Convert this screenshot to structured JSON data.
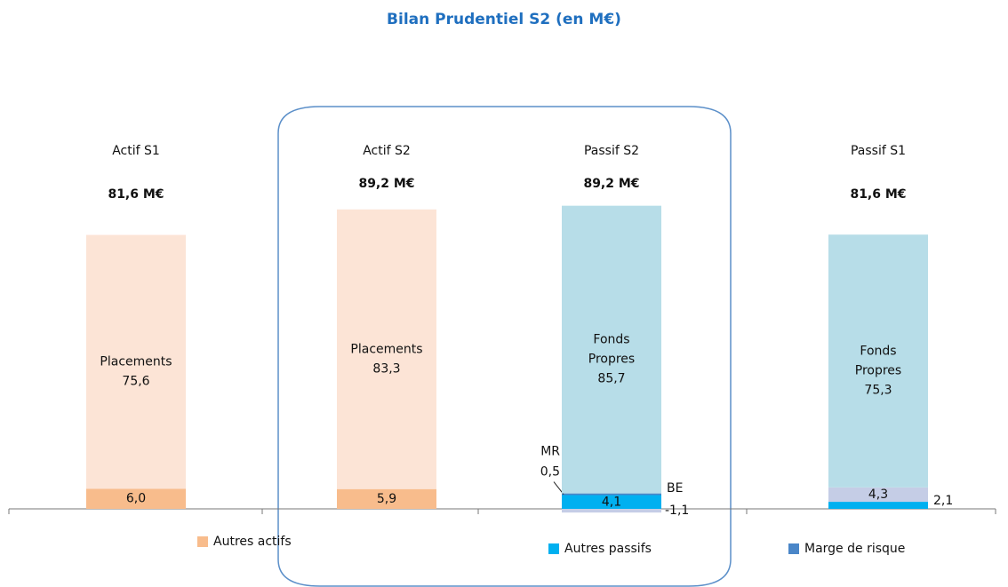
{
  "chart_data": {
    "type": "stacked-bar",
    "title": "Bilan Prudentiel S2 (en M€)",
    "categories": [
      "Actif  S1",
      "Actif  S2",
      "Passif S2",
      "Passif S1"
    ],
    "totals": [
      81.6,
      89.2,
      89.2,
      81.6
    ],
    "total_labels": [
      "81,6 M€",
      "89,2 M€",
      "89,2 M€",
      "81,6 M€"
    ],
    "series": [
      {
        "name": "Autres actifs",
        "color": "#f8bc8c",
        "legend": true,
        "show_name": false,
        "values": [
          6.0,
          5.9,
          null,
          null
        ],
        "value_labels": [
          "6,0",
          "5,9",
          null,
          null
        ]
      },
      {
        "name": "Placements",
        "color": "#fce4d6",
        "legend": false,
        "show_name": true,
        "values": [
          75.6,
          83.3,
          null,
          null
        ],
        "value_labels": [
          "75,6",
          "83,3",
          null,
          null
        ]
      },
      {
        "name": "Autres passifs",
        "color": "#00b0f0",
        "legend": true,
        "show_name": false,
        "values": [
          null,
          null,
          4.1,
          2.1
        ],
        "value_labels": [
          null,
          null,
          "4,1",
          "2,1"
        ]
      },
      {
        "name": "BE",
        "color": "#c5cde6",
        "legend": false,
        "show_name": true,
        "values": [
          null,
          null,
          -1.1,
          4.3
        ],
        "value_labels": [
          null,
          null,
          "-1,1",
          "4,3"
        ],
        "name_for": [
          null,
          null,
          true,
          false
        ]
      },
      {
        "name": "MR",
        "color": "#4a86c8",
        "legend": false,
        "show_name": true,
        "values": [
          null,
          null,
          0.5,
          null
        ],
        "value_labels": [
          null,
          null,
          "0,5",
          null
        ]
      },
      {
        "name": "Marge de risque",
        "color": "#4a86c8",
        "legend": true,
        "show_name": false,
        "values": [
          null,
          null,
          null,
          null
        ],
        "value_labels": [
          null,
          null,
          null,
          null
        ]
      },
      {
        "name": "Fonds Propres",
        "color": "#b7dde8",
        "legend": false,
        "show_name": true,
        "values": [
          null,
          null,
          85.7,
          75.3
        ],
        "value_labels": [
          null,
          null,
          "85,7",
          "75,3"
        ]
      }
    ]
  }
}
